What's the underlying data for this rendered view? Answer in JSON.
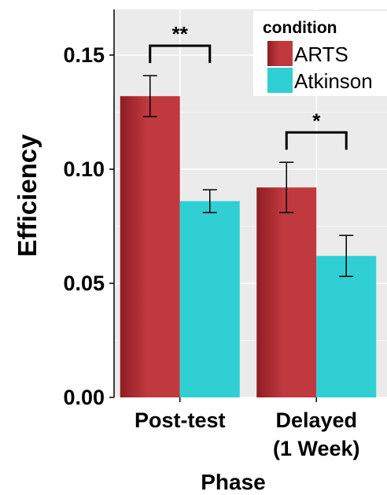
{
  "chart_data": {
    "type": "bar",
    "title": "",
    "xlabel": "Phase",
    "ylabel": "Efficiency",
    "categories": [
      [
        "Post-test"
      ],
      [
        "Delayed",
        "(1 Week)"
      ]
    ],
    "ylim": [
      0,
      0.17
    ],
    "yticks": [
      0.0,
      0.05,
      0.1,
      0.15
    ],
    "ytick_labels": [
      "0.00",
      "0.05",
      "0.10",
      "0.15"
    ],
    "grid": true,
    "legend": {
      "title": "condition",
      "placement": "top-right"
    },
    "series": [
      {
        "name": "ARTS",
        "color": "#c0393e",
        "color_dark": "#8f1d24",
        "values": [
          0.132,
          0.092
        ],
        "err_low": [
          0.123,
          0.081
        ],
        "err_high": [
          0.141,
          0.103
        ]
      },
      {
        "name": "Atkinson",
        "color": "#2fcfd4",
        "values": [
          0.086,
          0.062
        ],
        "err_low": [
          0.081,
          0.053
        ],
        "err_high": [
          0.091,
          0.071
        ]
      }
    ],
    "annotations": [
      {
        "label": "**",
        "category_index": 0
      },
      {
        "label": "*",
        "category_index": 1
      }
    ]
  },
  "colors": {
    "panel_background": "#ebebeb",
    "grid_major": "#ffffff",
    "axis_line": "#000000"
  }
}
